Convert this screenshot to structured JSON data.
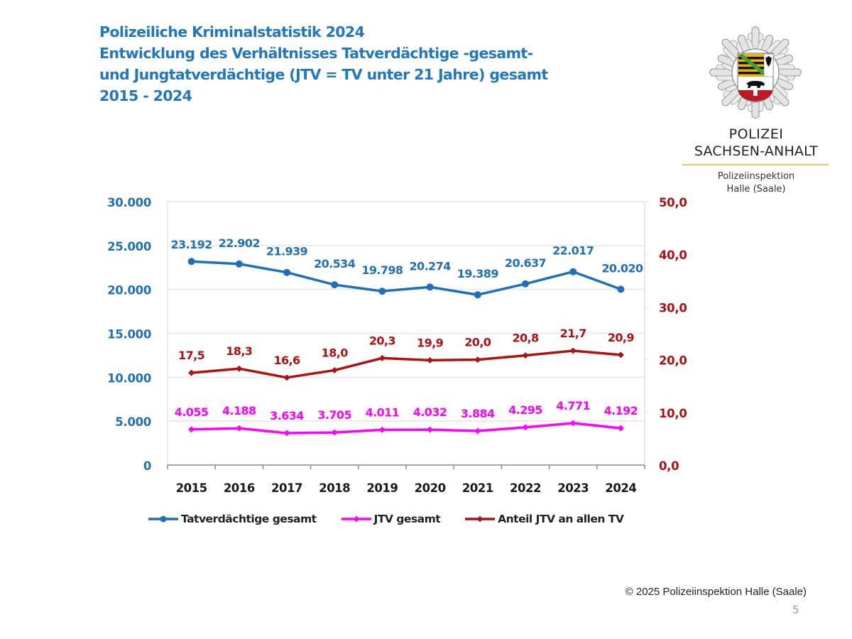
{
  "header": {
    "title_lines": [
      "Polizeiliche Kriminalstatistik 2024",
      "Entwicklung des Verhältnisses Tatverdächtige -gesamt-",
      "und Jungtatverdächtige (JTV = TV unter 21 Jahre) gesamt",
      "2015 - 2024"
    ]
  },
  "logo": {
    "line1": "POLIZEI",
    "line2": "SACHSEN-ANHALT",
    "sub1": "Polizeiinspektion",
    "sub2": "Halle (Saale)"
  },
  "footer": {
    "copyright": "© 2025 Polizeiinspektion Halle (Saale)",
    "page_number": "5"
  },
  "colors": {
    "title": "#1f77c4",
    "tv_gesamt": "#1f6fbf",
    "jtv_gesamt": "#ff00ff",
    "anteil": "#b01010",
    "left_axis": "#1f6fbf",
    "right_axis": "#b01010",
    "grid": "#e6e6e6"
  },
  "chart_data": {
    "type": "line",
    "title": "Polizeiliche Kriminalstatistik 2024",
    "categories": [
      "2015",
      "2016",
      "2017",
      "2018",
      "2019",
      "2020",
      "2021",
      "2022",
      "2023",
      "2024"
    ],
    "y_left": {
      "lim": [
        0,
        30000
      ],
      "ticks": [
        0,
        5000,
        10000,
        15000,
        20000,
        25000,
        30000
      ],
      "tick_labels": [
        "0",
        "5.000",
        "10.000",
        "15.000",
        "20.000",
        "25.000",
        "30.000"
      ]
    },
    "y_right": {
      "lim": [
        0,
        50
      ],
      "ticks": [
        0,
        10,
        20,
        30,
        40,
        50
      ],
      "tick_labels": [
        "0,0",
        "10,0",
        "20,0",
        "30,0",
        "40,0",
        "50,0"
      ]
    },
    "grid": true,
    "legend_position": "bottom",
    "series": [
      {
        "name": "Tatverdächtige gesamt",
        "axis": "left",
        "marker": "circle",
        "color_key": "tv_gesamt",
        "values": [
          23192,
          22902,
          21939,
          20534,
          19798,
          20274,
          19389,
          20637,
          22017,
          20020
        ],
        "labels": [
          "23.192",
          "22.902",
          "21.939",
          "20.534",
          "19.798",
          "20.274",
          "19.389",
          "20.637",
          "22.017",
          "20.020"
        ]
      },
      {
        "name": "JTV gesamt",
        "axis": "left",
        "marker": "diamond",
        "color_key": "jtv_gesamt",
        "values": [
          4055,
          4188,
          3634,
          3705,
          4011,
          4032,
          3884,
          4295,
          4771,
          4192
        ],
        "labels": [
          "4.055",
          "4.188",
          "3.634",
          "3.705",
          "4.011",
          "4.032",
          "3.884",
          "4.295",
          "4.771",
          "4.192"
        ]
      },
      {
        "name": "Anteil JTV an allen TV",
        "axis": "right",
        "marker": "diamond",
        "color_key": "anteil",
        "values": [
          17.5,
          18.3,
          16.6,
          18.0,
          20.3,
          19.9,
          20.0,
          20.8,
          21.7,
          20.9
        ],
        "labels": [
          "17,5",
          "18,3",
          "16,6",
          "18,0",
          "20,3",
          "19,9",
          "20,0",
          "20,8",
          "21,7",
          "20,9"
        ]
      }
    ]
  }
}
